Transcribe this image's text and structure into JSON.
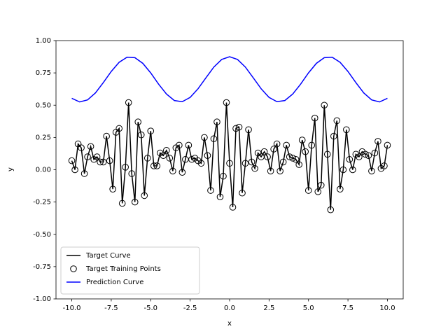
{
  "chart_data": {
    "type": "line",
    "xlabel": "x",
    "ylabel": "y",
    "x": [
      -10,
      -9.8,
      -9.6,
      -9.4,
      -9.2,
      -9,
      -8.8,
      -8.6,
      -8.4,
      -8.2,
      -8,
      -7.8,
      -7.6,
      -7.4,
      -7.2,
      -7,
      -6.8,
      -6.6,
      -6.4,
      -6.2,
      -6,
      -5.8,
      -5.6,
      -5.4,
      -5.2,
      -5,
      -4.8,
      -4.6,
      -4.4,
      -4.2,
      -4,
      -3.8,
      -3.6,
      -3.4,
      -3.2,
      -3,
      -2.8,
      -2.6,
      -2.4,
      -2.2,
      -2,
      -1.8,
      -1.6,
      -1.4,
      -1.2,
      -1,
      -0.8,
      -0.6,
      -0.4,
      -0.2,
      0,
      0.2,
      0.4,
      0.6,
      0.8,
      1,
      1.2,
      1.4,
      1.6,
      1.8,
      2,
      2.2,
      2.4,
      2.6,
      2.8,
      3,
      3.2,
      3.4,
      3.6,
      3.8,
      4,
      4.2,
      4.4,
      4.6,
      4.8,
      5,
      5.2,
      5.4,
      5.6,
      5.8,
      6,
      6.2,
      6.4,
      6.6,
      6.8,
      7,
      7.2,
      7.4,
      7.6,
      7.8,
      8,
      8.2,
      8.4,
      8.6,
      8.8,
      9,
      9.2,
      9.4,
      9.6,
      9.8,
      10
    ],
    "series": [
      {
        "name": "Target Curve",
        "kind": "line",
        "color": "#000000",
        "values": [
          0.07,
          0.0,
          0.2,
          0.17,
          -0.03,
          0.1,
          0.18,
          0.08,
          0.1,
          0.06,
          0.06,
          0.26,
          0.07,
          -0.15,
          0.29,
          0.32,
          -0.26,
          0.02,
          0.52,
          -0.03,
          -0.25,
          0.37,
          0.27,
          -0.2,
          0.09,
          0.3,
          0.03,
          0.03,
          0.13,
          0.11,
          0.15,
          0.09,
          -0.01,
          0.17,
          0.19,
          -0.02,
          0.08,
          0.19,
          0.08,
          0.09,
          0.07,
          0.05,
          0.25,
          0.11,
          -0.16,
          0.24,
          0.37,
          -0.21,
          -0.05,
          0.52,
          0.05,
          -0.29,
          0.32,
          0.33,
          -0.18,
          0.05,
          0.31,
          0.06,
          0.01,
          0.13,
          0.1,
          0.14,
          0.1,
          -0.01,
          0.16,
          0.2,
          -0.01,
          0.06,
          0.19,
          0.1,
          0.09,
          0.08,
          0.04,
          0.23,
          0.14,
          -0.16,
          0.19,
          0.4,
          -0.17,
          -0.12,
          0.5,
          0.12,
          -0.31,
          0.26,
          0.38,
          -0.15,
          0.0,
          0.31,
          0.08,
          0.0,
          0.12,
          0.1,
          0.14,
          0.12,
          0.11,
          -0.01,
          0.13,
          0.22,
          0.01,
          0.03,
          0.19
        ]
      },
      {
        "name": "Target Training Points",
        "kind": "scatter",
        "color": "#000000",
        "values": [
          0.07,
          0.0,
          0.2,
          0.17,
          -0.03,
          0.1,
          0.18,
          0.08,
          0.1,
          0.06,
          0.06,
          0.26,
          0.07,
          -0.15,
          0.29,
          0.32,
          -0.26,
          0.02,
          0.52,
          -0.03,
          -0.25,
          0.37,
          0.27,
          -0.2,
          0.09,
          0.3,
          0.03,
          0.03,
          0.13,
          0.11,
          0.15,
          0.09,
          -0.01,
          0.17,
          0.19,
          -0.02,
          0.08,
          0.19,
          0.08,
          0.09,
          0.07,
          0.05,
          0.25,
          0.11,
          -0.16,
          0.24,
          0.37,
          -0.21,
          -0.05,
          0.52,
          0.05,
          -0.29,
          0.32,
          0.33,
          -0.18,
          0.05,
          0.31,
          0.06,
          0.01,
          0.13,
          0.1,
          0.14,
          0.1,
          -0.01,
          0.16,
          0.2,
          -0.01,
          0.06,
          0.19,
          0.1,
          0.09,
          0.08,
          0.04,
          0.23,
          0.14,
          -0.16,
          0.19,
          0.4,
          -0.17,
          -0.12,
          0.5,
          0.12,
          -0.31,
          0.26,
          0.38,
          -0.15,
          0.0,
          0.31,
          0.08,
          0.0,
          0.12,
          0.1,
          0.14,
          0.12,
          0.11,
          -0.01,
          0.13,
          0.22,
          0.01,
          0.03,
          0.19
        ]
      },
      {
        "name": "Prediction Curve",
        "kind": "line",
        "color": "#0000ff",
        "x": [
          -10,
          -9.5,
          -9,
          -8.5,
          -8,
          -7.5,
          -7,
          -6.5,
          -6,
          -5.5,
          -5,
          -4.5,
          -4,
          -3.5,
          -3,
          -2.5,
          -2,
          -1.5,
          -1,
          -0.5,
          0,
          0.5,
          1,
          1.5,
          2,
          2.5,
          3,
          3.5,
          4,
          4.5,
          5,
          5.5,
          6,
          6.5,
          7,
          7.5,
          8,
          8.5,
          9,
          9.5,
          10
        ],
        "values": [
          0.553,
          0.525,
          0.541,
          0.595,
          0.675,
          0.761,
          0.832,
          0.871,
          0.868,
          0.824,
          0.75,
          0.663,
          0.586,
          0.536,
          0.527,
          0.56,
          0.627,
          0.712,
          0.795,
          0.854,
          0.875,
          0.854,
          0.795,
          0.712,
          0.627,
          0.56,
          0.527,
          0.536,
          0.586,
          0.663,
          0.75,
          0.824,
          0.868,
          0.871,
          0.832,
          0.761,
          0.675,
          0.595,
          0.541,
          0.525,
          0.553
        ]
      }
    ],
    "xlim": [
      -11,
      11
    ],
    "ylim": [
      -1,
      1
    ],
    "xticks": [
      {
        "value": -10,
        "label": "-10.0"
      },
      {
        "value": -7.5,
        "label": "-7.5"
      },
      {
        "value": -5,
        "label": "-5.0"
      },
      {
        "value": -2.5,
        "label": "-2.5"
      },
      {
        "value": 0,
        "label": "0.0"
      },
      {
        "value": 2.5,
        "label": "2.5"
      },
      {
        "value": 5,
        "label": "5.0"
      },
      {
        "value": 7.5,
        "label": "7.5"
      },
      {
        "value": 10,
        "label": "10.0"
      }
    ],
    "yticks": [
      {
        "value": -1,
        "label": "-1.00"
      },
      {
        "value": -0.75,
        "label": "-0.75"
      },
      {
        "value": -0.5,
        "label": "-0.50"
      },
      {
        "value": -0.25,
        "label": "-0.25"
      },
      {
        "value": 0,
        "label": "0.00"
      },
      {
        "value": 0.25,
        "label": "0.25"
      },
      {
        "value": 0.5,
        "label": "0.50"
      },
      {
        "value": 0.75,
        "label": "0.75"
      },
      {
        "value": 1,
        "label": "1.00"
      }
    ],
    "grid": false,
    "legend": "lower left"
  }
}
